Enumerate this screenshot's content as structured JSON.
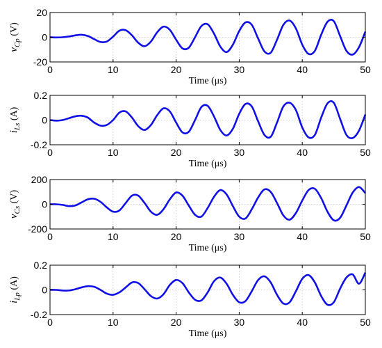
{
  "chart_data": [
    {
      "type": "line",
      "xlabel": "Time (μs)",
      "ylabel": {
        "symbol": "v",
        "subscript": "Cp",
        "unit": "(V)"
      },
      "xlim": [
        0,
        50
      ],
      "ylim": [
        -20,
        20
      ],
      "xticks": [
        0,
        10,
        20,
        30,
        40,
        50
      ],
      "yticks": [
        -20,
        0,
        20
      ],
      "grid": true,
      "color": "#1010e6",
      "waveform": {
        "peak_times": [
          4.8,
          11.0,
          17.2,
          23.4,
          29.6,
          35.8,
          42.0,
          48.2
        ],
        "peak_values": [
          2,
          6,
          9,
          11,
          12.5,
          13,
          13.5,
          14
        ],
        "trough_times": [
          8.0,
          14.2,
          20.4,
          26.6,
          32.8,
          39.0,
          45.2
        ],
        "trough_values": [
          -4,
          -7.5,
          -10,
          -12,
          -13,
          -13.5,
          -14
        ]
      },
      "x": [
        0,
        1,
        2,
        3,
        4,
        5,
        6,
        7,
        8,
        9,
        10,
        11,
        12,
        13,
        14,
        15,
        16,
        17,
        18,
        19,
        20,
        21,
        22,
        23,
        24,
        25,
        26,
        27,
        28,
        29,
        30,
        31,
        32,
        33,
        34,
        35,
        36,
        37,
        38,
        39,
        40,
        41,
        42,
        43,
        44,
        45,
        46,
        47,
        48,
        49,
        50
      ],
      "y": [
        0,
        -0.2,
        0,
        0.6,
        1.5,
        2,
        1,
        -1.5,
        -3.8,
        -3.5,
        0.5,
        5.3,
        5.7,
        1.5,
        -4.5,
        -7.3,
        -3.5,
        4,
        8.6,
        6,
        -2,
        -9,
        -8.5,
        0,
        9,
        10.5,
        3,
        -7.5,
        -12,
        -6,
        5,
        12,
        10,
        -1,
        -11.5,
        -12.5,
        -2,
        10,
        13.5,
        7,
        -6,
        -13.5,
        -11,
        2,
        12.5,
        13,
        1,
        -11,
        -14,
        -8,
        4.5
      ]
    },
    {
      "type": "line",
      "xlabel": "Time (μs)",
      "ylabel": {
        "symbol": "i",
        "subscript": "Ls",
        "unit": "(A)"
      },
      "xlim": [
        0,
        50
      ],
      "ylim": [
        -0.2,
        0.2
      ],
      "xticks": [
        0,
        10,
        20,
        30,
        40,
        50
      ],
      "yticks": [
        -0.2,
        0,
        0.2
      ],
      "grid": true,
      "color": "#1010e6",
      "x": [
        0,
        1,
        2,
        3,
        4,
        5,
        6,
        7,
        8,
        9,
        10,
        11,
        12,
        13,
        14,
        15,
        16,
        17,
        18,
        19,
        20,
        21,
        22,
        23,
        24,
        25,
        26,
        27,
        28,
        29,
        30,
        31,
        32,
        33,
        34,
        35,
        36,
        37,
        38,
        39,
        40,
        41,
        42,
        43,
        44,
        45,
        46,
        47,
        48,
        49,
        50
      ],
      "y": [
        0,
        -0.005,
        0,
        0.015,
        0.03,
        0.035,
        0.02,
        -0.02,
        -0.045,
        -0.04,
        0,
        0.06,
        0.07,
        0.02,
        -0.05,
        -0.08,
        -0.04,
        0.04,
        0.095,
        0.07,
        -0.02,
        -0.1,
        -0.095,
        0,
        0.105,
        0.115,
        0.03,
        -0.08,
        -0.125,
        -0.07,
        0.05,
        0.13,
        0.11,
        -0.01,
        -0.12,
        -0.135,
        -0.02,
        0.11,
        0.14,
        0.08,
        -0.06,
        -0.14,
        -0.12,
        0.02,
        0.135,
        0.14,
        0.01,
        -0.12,
        -0.145,
        -0.085,
        0.045
      ]
    },
    {
      "type": "line",
      "xlabel": "Time (μs)",
      "ylabel": {
        "symbol": "v",
        "subscript": "Cs",
        "unit": "(V)"
      },
      "xlim": [
        0,
        50
      ],
      "ylim": [
        -200,
        200
      ],
      "xticks": [
        0,
        10,
        20,
        30,
        40,
        50
      ],
      "yticks": [
        -200,
        0,
        200
      ],
      "grid": true,
      "color": "#1010e6",
      "x": [
        0,
        1,
        2,
        3,
        4,
        5,
        6,
        7,
        8,
        9,
        10,
        11,
        12,
        13,
        14,
        15,
        16,
        17,
        18,
        19,
        20,
        21,
        22,
        23,
        24,
        25,
        26,
        27,
        28,
        29,
        30,
        31,
        32,
        33,
        34,
        35,
        36,
        37,
        38,
        39,
        40,
        41,
        42,
        43,
        44,
        45,
        46,
        47,
        48,
        49,
        50
      ],
      "y": [
        0,
        0,
        -5,
        -15,
        -10,
        15,
        40,
        45,
        20,
        -25,
        -60,
        -50,
        10,
        70,
        70,
        10,
        -60,
        -85,
        -40,
        40,
        95,
        70,
        -10,
        -85,
        -100,
        -30,
        60,
        115,
        80,
        -15,
        -100,
        -115,
        -40,
        55,
        120,
        100,
        10,
        -90,
        -125,
        -70,
        30,
        115,
        125,
        50,
        -60,
        -130,
        -110,
        -10,
        95,
        140,
        90
      ]
    },
    {
      "type": "line",
      "xlabel": "Time (μs)",
      "ylabel": {
        "symbol": "i",
        "subscript": "Lp",
        "unit": "(A)"
      },
      "xlim": [
        0,
        50
      ],
      "ylim": [
        -0.2,
        0.2
      ],
      "xticks": [
        0,
        10,
        20,
        30,
        40,
        50
      ],
      "yticks": [
        -0.2,
        0,
        0.2
      ],
      "grid": true,
      "color": "#1010e6",
      "x": [
        0,
        1,
        2,
        3,
        4,
        5,
        6,
        7,
        8,
        9,
        10,
        11,
        12,
        13,
        14,
        15,
        16,
        17,
        18,
        19,
        20,
        21,
        22,
        23,
        24,
        25,
        26,
        27,
        28,
        29,
        30,
        31,
        32,
        33,
        34,
        35,
        36,
        37,
        38,
        39,
        40,
        41,
        42,
        43,
        44,
        45,
        46,
        47,
        48,
        49,
        50
      ],
      "y": [
        0,
        0,
        -0.005,
        -0.005,
        0.005,
        0.02,
        0.03,
        0.025,
        0,
        -0.03,
        -0.04,
        -0.02,
        0.02,
        0.06,
        0.055,
        0.005,
        -0.05,
        -0.07,
        -0.035,
        0.04,
        0.08,
        0.055,
        -0.02,
        -0.08,
        -0.085,
        -0.02,
        0.07,
        0.1,
        0.05,
        -0.04,
        -0.1,
        -0.09,
        -0.01,
        0.08,
        0.11,
        0.06,
        -0.04,
        -0.11,
        -0.1,
        -0.01,
        0.09,
        0.12,
        0.06,
        -0.05,
        -0.12,
        -0.1,
        0.01,
        0.1,
        0.125,
        0.05,
        0.14
      ]
    }
  ]
}
